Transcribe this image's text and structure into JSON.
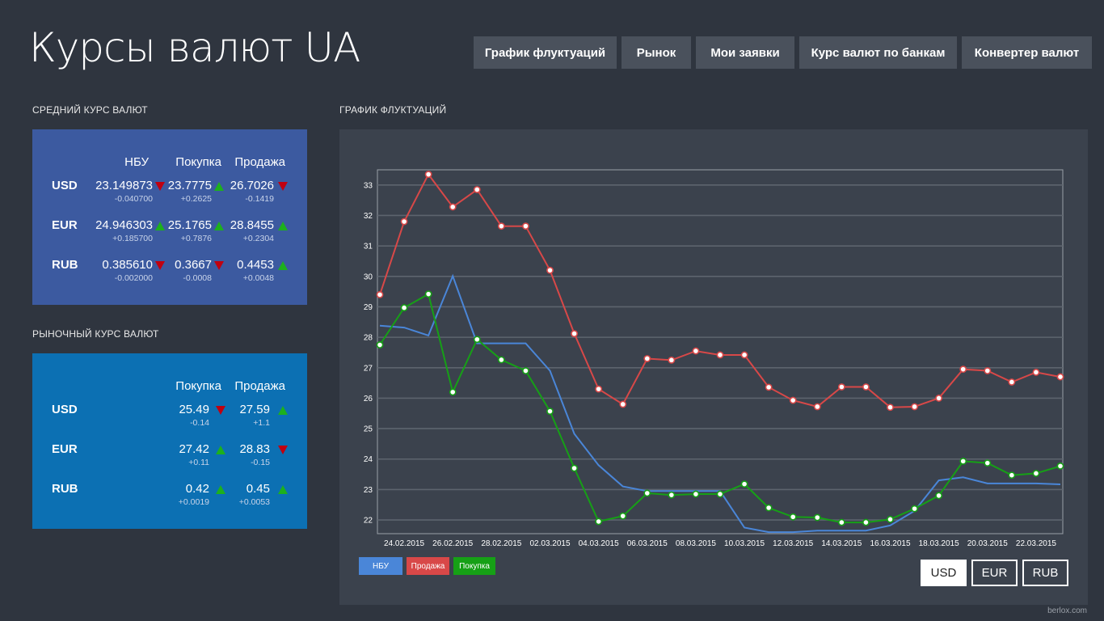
{
  "app": {
    "title": "Курсы валют UA",
    "footer": "berlox.com"
  },
  "nav": [
    {
      "label": "График флуктуаций",
      "active": true
    },
    {
      "label": "Рынок",
      "active": false
    },
    {
      "label": "Мои заявки",
      "active": false
    },
    {
      "label": "Курс валют по банкам",
      "active": false
    },
    {
      "label": "Конвертер валют",
      "active": false
    }
  ],
  "average": {
    "section_label": "СРЕДНИЙ КУРС ВАЛЮТ",
    "headers": {
      "nbu": "НБУ",
      "buy": "Покупка",
      "sell": "Продажа"
    },
    "rows": [
      {
        "currency": "USD",
        "nbu": {
          "value": "23.149873",
          "change": "-0.040700",
          "trend": "down"
        },
        "buy": {
          "value": "23.7775",
          "change": "+0.2625",
          "trend": "up"
        },
        "sell": {
          "value": "26.7026",
          "change": "-0.1419",
          "trend": "down"
        }
      },
      {
        "currency": "EUR",
        "nbu": {
          "value": "24.946303",
          "change": "+0.185700",
          "trend": "up"
        },
        "buy": {
          "value": "25.1765",
          "change": "+0.7876",
          "trend": "up"
        },
        "sell": {
          "value": "28.8455",
          "change": "+0.2304",
          "trend": "up"
        }
      },
      {
        "currency": "RUB",
        "nbu": {
          "value": "0.385610",
          "change": "-0.002000",
          "trend": "down"
        },
        "buy": {
          "value": "0.3667",
          "change": "-0.0008",
          "trend": "down"
        },
        "sell": {
          "value": "0.4453",
          "change": "+0.0048",
          "trend": "up"
        }
      }
    ]
  },
  "market": {
    "section_label": "РЫНОЧНЫЙ КУРС ВАЛЮТ",
    "headers": {
      "buy": "Покупка",
      "sell": "Продажа"
    },
    "rows": [
      {
        "currency": "USD",
        "buy": {
          "value": "25.49",
          "change": "-0.14",
          "trend": "down"
        },
        "sell": {
          "value": "27.59",
          "change": "+1.1",
          "trend": "up"
        }
      },
      {
        "currency": "EUR",
        "buy": {
          "value": "27.42",
          "change": "+0.11",
          "trend": "up"
        },
        "sell": {
          "value": "28.83",
          "change": "-0.15",
          "trend": "down"
        }
      },
      {
        "currency": "RUB",
        "buy": {
          "value": "0.42",
          "change": "+0.0019",
          "trend": "up"
        },
        "sell": {
          "value": "0.45",
          "change": "+0.0053",
          "trend": "up"
        }
      }
    ]
  },
  "chart_section_label": "ГРАФИК ФЛУКТУАЦИЙ",
  "currency_toggle": [
    {
      "label": "USD",
      "active": true
    },
    {
      "label": "EUR",
      "active": false
    },
    {
      "label": "RUB",
      "active": false
    }
  ],
  "colors": {
    "nbu": "#4a86d8",
    "sell": "#d84848",
    "buy": "#16a016",
    "up": "#1db01d",
    "down": "#c00010"
  },
  "chart_data": {
    "type": "line",
    "x": [
      "23.02.2015",
      "24.02.2015",
      "25.02.2015",
      "26.02.2015",
      "27.02.2015",
      "28.02.2015",
      "01.03.2015",
      "02.03.2015",
      "03.03.2015",
      "04.03.2015",
      "05.03.2015",
      "06.03.2015",
      "07.03.2015",
      "08.03.2015",
      "09.03.2015",
      "10.03.2015",
      "11.03.2015",
      "12.03.2015",
      "13.03.2015",
      "14.03.2015",
      "15.03.2015",
      "16.03.2015",
      "17.03.2015",
      "18.03.2015",
      "19.03.2015",
      "20.03.2015",
      "21.03.2015",
      "22.03.2015",
      "23.03.2015"
    ],
    "x_tick_labels": [
      "24.02.2015",
      "26.02.2015",
      "28.02.2015",
      "02.03.2015",
      "04.03.2015",
      "06.03.2015",
      "08.03.2015",
      "10.03.2015",
      "12.03.2015",
      "14.03.2015",
      "16.03.2015",
      "18.03.2015",
      "20.03.2015",
      "22.03.2015"
    ],
    "y_ticks": [
      22,
      23,
      24,
      25,
      26,
      27,
      28,
      29,
      30,
      31,
      32,
      33
    ],
    "ylim": [
      21.55,
      33.5
    ],
    "grid": true,
    "legend_position": "bottom-left",
    "series": [
      {
        "name": "НБУ",
        "key": "nbu",
        "markers": false,
        "values": [
          28.38,
          28.32,
          28.06,
          30.01,
          27.8,
          27.8,
          27.8,
          26.9,
          24.83,
          23.8,
          23.1,
          22.95,
          22.95,
          22.95,
          22.95,
          21.75,
          21.6,
          21.6,
          21.65,
          21.65,
          21.65,
          21.82,
          22.3,
          23.3,
          23.4,
          23.2,
          23.2,
          23.2,
          23.17
        ]
      },
      {
        "name": "Продажа",
        "key": "sell",
        "markers": true,
        "values": [
          29.4,
          31.8,
          33.35,
          32.28,
          32.85,
          31.65,
          31.65,
          30.2,
          28.12,
          26.3,
          25.8,
          27.3,
          27.25,
          27.55,
          27.42,
          27.42,
          26.36,
          25.93,
          25.72,
          26.37,
          26.37,
          25.7,
          25.72,
          26.0,
          26.95,
          26.9,
          26.53,
          26.85,
          26.7
        ]
      },
      {
        "name": "Покупка",
        "key": "buy",
        "markers": true,
        "values": [
          27.75,
          28.97,
          29.42,
          26.2,
          27.93,
          27.26,
          26.9,
          25.57,
          23.7,
          21.95,
          22.13,
          22.88,
          22.82,
          22.85,
          22.85,
          23.18,
          22.4,
          22.1,
          22.08,
          21.92,
          21.92,
          22.02,
          22.37,
          22.8,
          23.93,
          23.87,
          23.47,
          23.53,
          23.77
        ]
      }
    ]
  }
}
